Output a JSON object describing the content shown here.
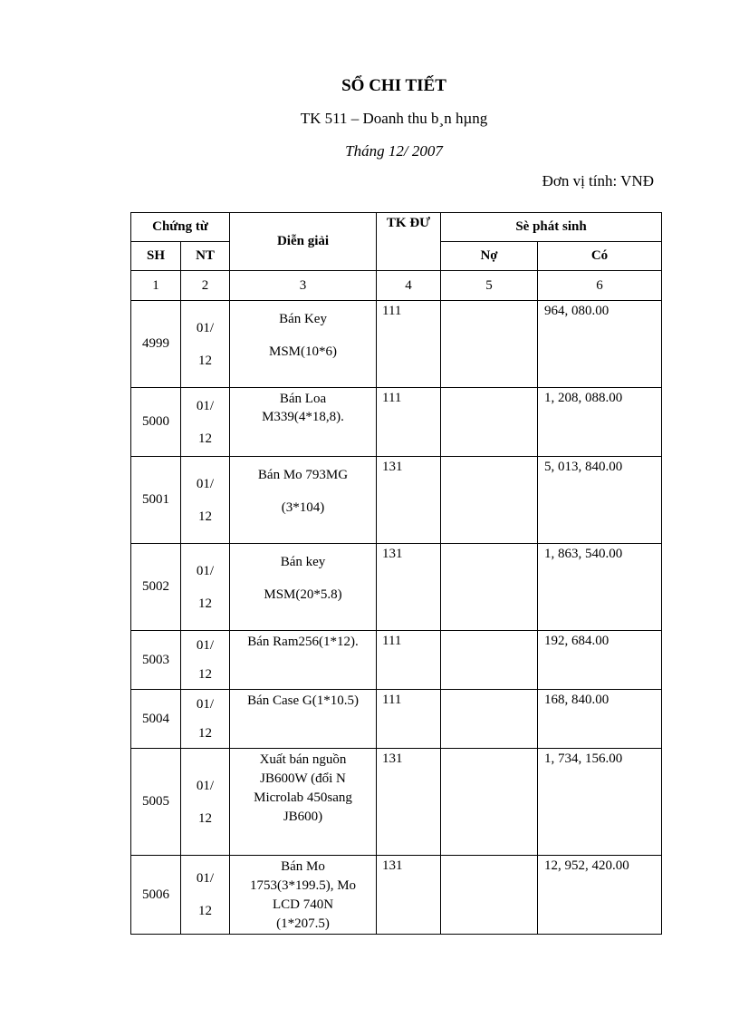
{
  "header": {
    "title": "SỔ CHI TIẾT",
    "subtitle": "TK 511 – Doanh thu b¸n hµng",
    "month": "Tháng 12/ 2007",
    "unit": "Đơn vị tính: VNĐ"
  },
  "table": {
    "headers": {
      "chung_tu": "Chứng từ",
      "sh": "SH",
      "nt": "NT",
      "dien_giai": "Diễn giải",
      "tk_du": "TK ĐƯ",
      "phat_sinh": "Sè phát  sinh",
      "no": "Nợ",
      "co": "Có"
    },
    "col_numbers": [
      "1",
      "2",
      "3",
      "4",
      "5",
      "6"
    ],
    "rows": [
      {
        "sh": "4999",
        "nt": "01/\n12",
        "desc": "Bán Key\nMSM(10*6)",
        "tk": "111",
        "no": "",
        "co": "964, 080.00"
      },
      {
        "sh": "5000",
        "nt": "01/\n12",
        "desc": "Bán Loa\nM339(4*18,8).",
        "tk": "111",
        "no": "",
        "co": "1, 208, 088.00"
      },
      {
        "sh": "5001",
        "nt": "01/\n12",
        "desc": "Bán Mo 793MG\n(3*104)",
        "tk": "131",
        "no": "",
        "co": "5, 013, 840.00"
      },
      {
        "sh": "5002",
        "nt": "01/\n12",
        "desc": "Bán key\nMSM(20*5.8)",
        "tk": "131",
        "no": "",
        "co": "1, 863, 540.00"
      },
      {
        "sh": "5003",
        "nt": "01/\n12",
        "desc": "Bán Ram256(1*12).",
        "tk": "111",
        "no": "",
        "co": "192, 684.00"
      },
      {
        "sh": "5004",
        "nt": "01/\n12",
        "desc": "Bán Case G(1*10.5)",
        "tk": "111",
        "no": "",
        "co": "168, 840.00"
      },
      {
        "sh": "5005",
        "nt": "01/\n12",
        "desc": "Xuất bán nguồn\nJB600W (đổi N\nMicrolab 450sang\nJB600)",
        "tk": "131",
        "no": "",
        "co": "1, 734, 156.00"
      },
      {
        "sh": "5006",
        "nt": "01/\n12",
        "desc": "Bán Mo\n1753(3*199.5), Mo\nLCD 740N\n(1*207.5)",
        "tk": "131",
        "no": "",
        "co": "12, 952, 420.00"
      }
    ]
  }
}
